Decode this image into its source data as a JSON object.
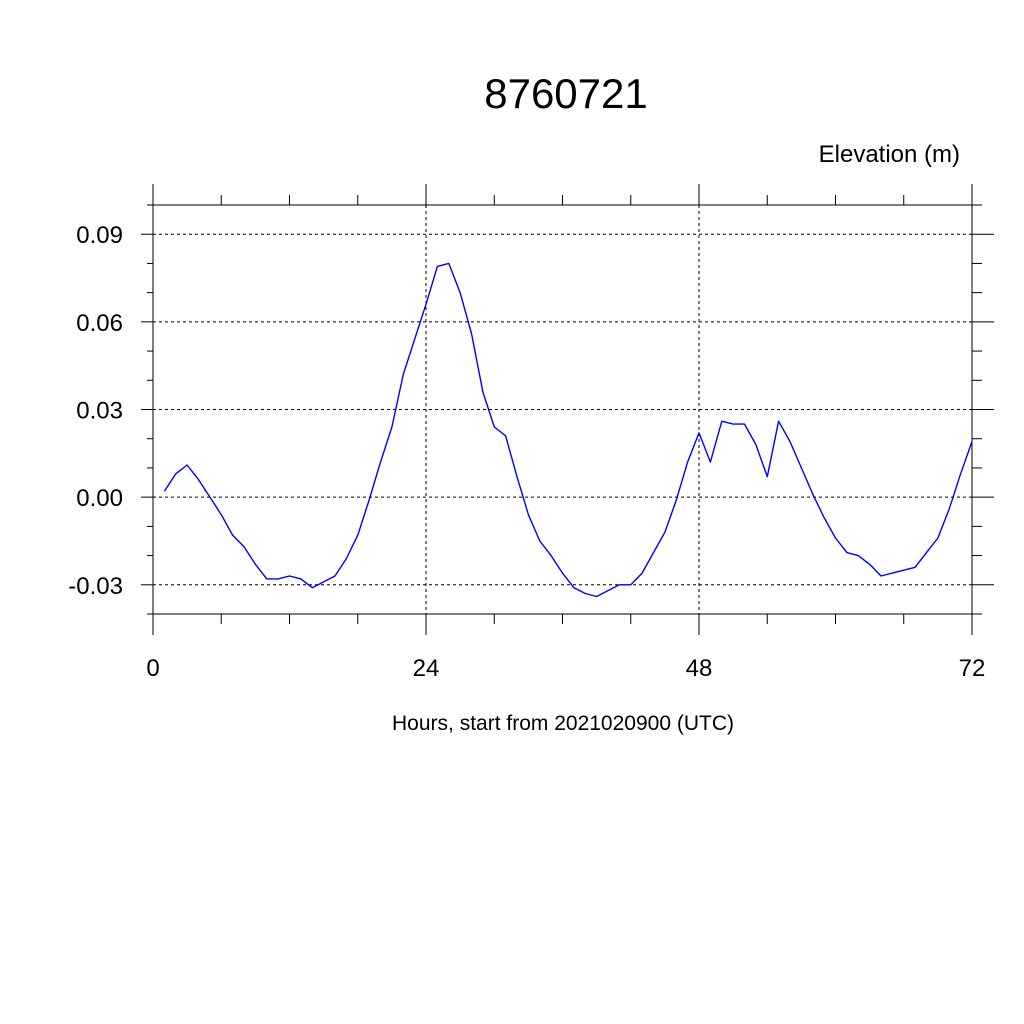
{
  "chart_data": {
    "type": "line",
    "title": "8760721",
    "ylabel": "Elevation (m)",
    "xlabel": "Hours, start from 2021020900 (UTC)",
    "xlim": [
      0,
      72
    ],
    "ylim": [
      -0.04,
      0.1
    ],
    "x_ticks": [
      0,
      24,
      48,
      72
    ],
    "x_tick_labels": [
      "0",
      "24",
      "48",
      "72"
    ],
    "y_ticks": [
      -0.03,
      0.0,
      0.03,
      0.06,
      0.09
    ],
    "y_tick_labels": [
      "-0.03",
      "0.00",
      "0.03",
      "0.06",
      "0.09"
    ],
    "grid": true,
    "series_color": "#0000ff",
    "series": [
      {
        "x": [
          1,
          2,
          3,
          4,
          5,
          6,
          7,
          8,
          9,
          10,
          11,
          12,
          13,
          14,
          15,
          16,
          17,
          18,
          19,
          20,
          21,
          22,
          23,
          24,
          25,
          26,
          27,
          28,
          29,
          30,
          31,
          32,
          33,
          34,
          35,
          36,
          37,
          38,
          39,
          40,
          41,
          42,
          43,
          44,
          45,
          46,
          47,
          48,
          49,
          50,
          51,
          52,
          53,
          54,
          55,
          56,
          57,
          58,
          59,
          60,
          61,
          62,
          63,
          64,
          65,
          66,
          67,
          68,
          69,
          70,
          71,
          72
        ],
        "values": [
          0.002,
          0.008,
          0.011,
          0.006,
          0.0,
          -0.006,
          -0.013,
          -0.017,
          -0.023,
          -0.028,
          -0.028,
          -0.027,
          -0.028,
          -0.031,
          -0.029,
          -0.027,
          -0.021,
          -0.013,
          -0.001,
          0.012,
          0.024,
          0.042,
          0.054,
          0.066,
          0.079,
          0.08,
          0.07,
          0.056,
          0.036,
          0.024,
          0.021,
          0.007,
          -0.006,
          -0.015,
          -0.02,
          -0.026,
          -0.031,
          -0.033,
          -0.034,
          -0.032,
          -0.03,
          -0.03,
          -0.026,
          -0.019,
          -0.012,
          -0.001,
          0.012,
          0.022,
          0.012,
          0.026,
          0.025,
          0.025,
          0.018,
          0.007,
          0.026,
          0.019,
          0.01,
          0.001,
          -0.007,
          -0.014,
          -0.019,
          -0.02,
          -0.023,
          -0.027,
          -0.026,
          -0.025,
          -0.024,
          -0.019,
          -0.014,
          -0.004,
          0.008,
          0.019
        ]
      }
    ]
  }
}
